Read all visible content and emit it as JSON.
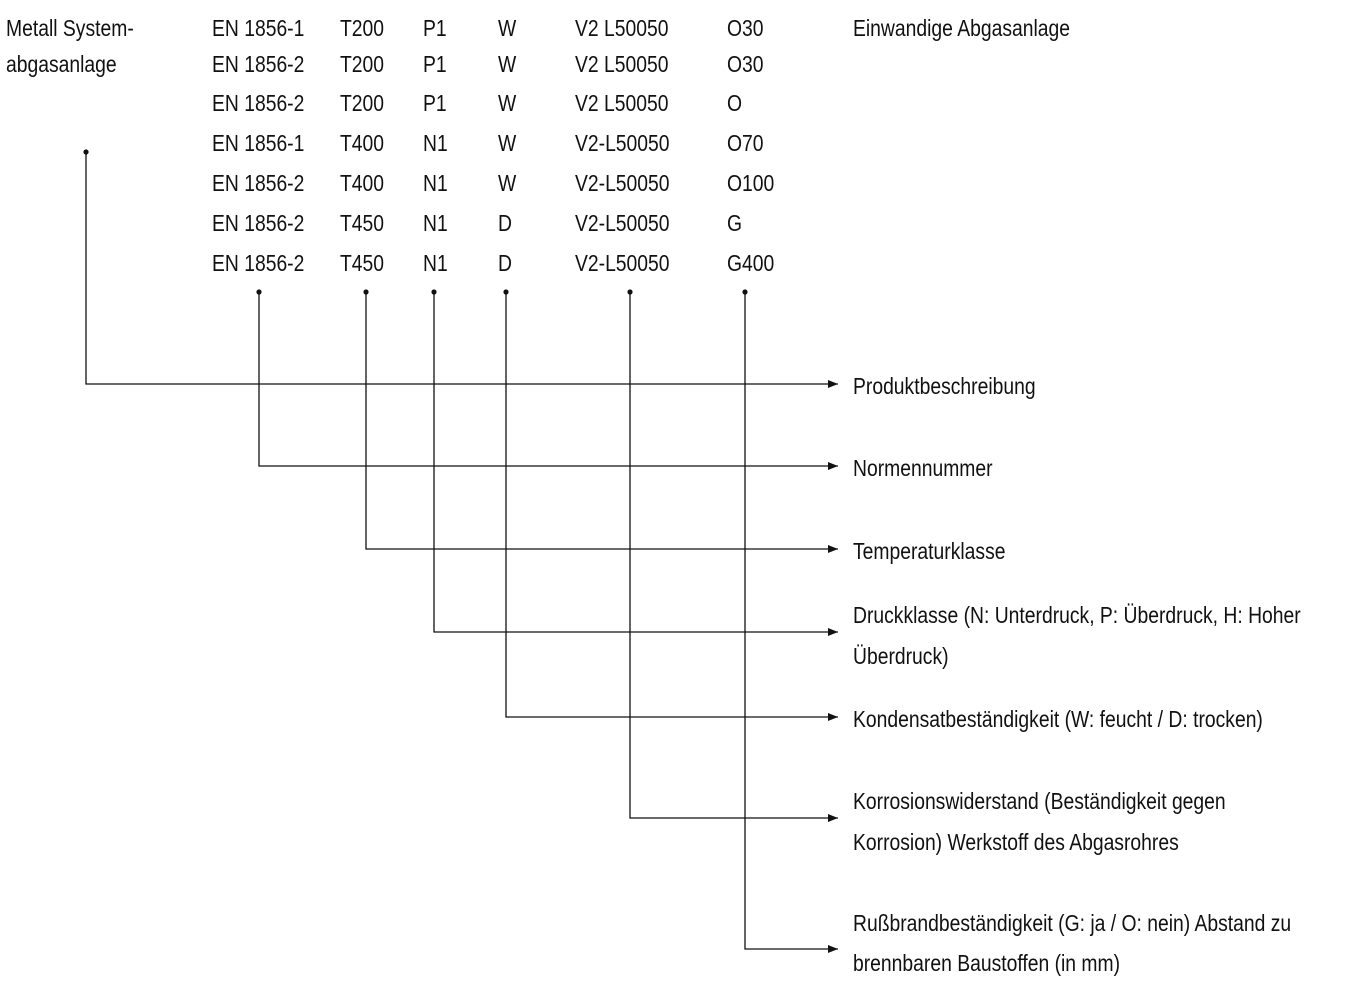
{
  "product": {
    "line1": "Metall System-",
    "line2": "abgasanlage"
  },
  "description_note": "Einwandige Abgasanlage",
  "rows": [
    [
      "EN 1856-1",
      "T200",
      "P1",
      "W",
      "V2 L50050",
      "O30"
    ],
    [
      "EN 1856-2",
      "T200",
      "P1",
      "W",
      "V2 L50050",
      "O30"
    ],
    [
      "EN 1856-2",
      "T200",
      "P1",
      "W",
      "V2 L50050",
      "O"
    ],
    [
      "EN 1856-1",
      "T400",
      "N1",
      "W",
      "V2-L50050",
      "O70"
    ],
    [
      "EN 1856-2",
      "T400",
      "N1",
      "W",
      "V2-L50050",
      "O100"
    ],
    [
      "EN 1856-2",
      "T450",
      "N1",
      "D",
      "V2-L50050",
      "G"
    ],
    [
      "EN 1856-2",
      "T450",
      "N1",
      "D",
      "V2-L50050",
      "G400"
    ]
  ],
  "labels": [
    {
      "line1": "Produktbeschreibung",
      "line2": ""
    },
    {
      "line1": "Normennummer",
      "line2": ""
    },
    {
      "line1": "Temperaturklasse",
      "line2": ""
    },
    {
      "line1": "Druckklasse (N: Unterdruck, P: Überdruck, H: Hoher",
      "line2": "Überdruck)"
    },
    {
      "line1": "Kondensatbeständigkeit (W: feucht / D: trocken)",
      "line2": ""
    },
    {
      "line1": "Korrosionswiderstand (Beständigkeit gegen",
      "line2": "Korrosion) Werkstoff des Abgasrohres"
    },
    {
      "line1": "Rußbrandbeständigkeit (G: ja / O: nein) Abstand zu",
      "line2": "brennbaren Baustoffen (in mm)"
    }
  ]
}
